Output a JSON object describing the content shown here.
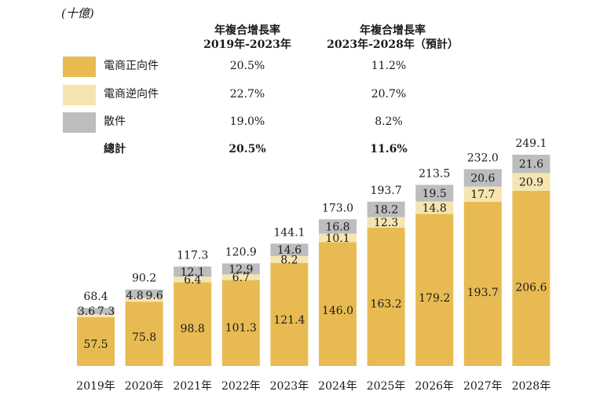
{
  "unit_label": "(十億)",
  "headers": {
    "cagr_hist_title": "年複合增長率",
    "cagr_hist_period": "2019年-2023年",
    "cagr_fcst_title": "年複合增長率",
    "cagr_fcst_period": "2023年-2028年（預計）"
  },
  "legend": [
    {
      "name": "電商正向件",
      "color": "#e8bb52",
      "cagr_hist": "20.5%",
      "cagr_fcst": "11.2%"
    },
    {
      "name": "電商逆向件",
      "color": "#f6e5b0",
      "cagr_hist": "22.7%",
      "cagr_fcst": "20.7%"
    },
    {
      "name": "散件",
      "color": "#bcbdbf",
      "cagr_hist": "19.0%",
      "cagr_fcst": "8.2%"
    },
    {
      "name": "總計",
      "cagr_hist": "20.5%",
      "cagr_fcst": "11.6%"
    }
  ],
  "chart_data": {
    "type": "bar",
    "stacked": true,
    "categories": [
      "2019年",
      "2020年",
      "2021年",
      "2022年",
      "2023年",
      "2024年",
      "2025年",
      "2026年",
      "2027年",
      "2028年"
    ],
    "series": [
      {
        "name": "電商正向件",
        "color": "#e8bb52",
        "values": [
          57.5,
          75.8,
          98.8,
          101.3,
          121.4,
          146.0,
          163.2,
          179.2,
          193.7,
          206.6
        ]
      },
      {
        "name": "電商逆向件",
        "color": "#f6e5b0",
        "values": [
          3.6,
          4.8,
          6.4,
          6.7,
          8.2,
          10.1,
          12.3,
          14.8,
          17.7,
          20.9
        ]
      },
      {
        "name": "散件",
        "color": "#bcbdbf",
        "values": [
          7.3,
          9.6,
          12.1,
          12.9,
          14.6,
          16.8,
          18.2,
          19.5,
          20.6,
          21.6
        ]
      }
    ],
    "totals": [
      68.4,
      90.2,
      117.3,
      120.9,
      144.1,
      173.0,
      193.7,
      213.5,
      232.0,
      249.1
    ],
    "ylim": [
      0,
      260
    ],
    "grid": false,
    "legend_position": "top-left"
  }
}
